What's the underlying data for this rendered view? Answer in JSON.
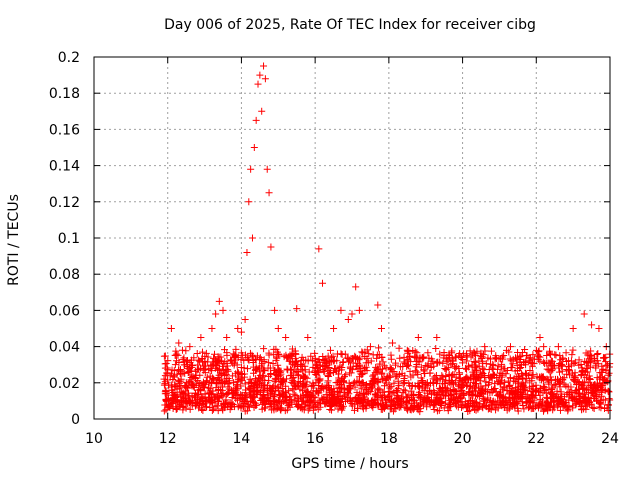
{
  "chart_data": {
    "type": "scatter",
    "title": "Day 006 of 2025, Rate Of TEC Index for receiver cibg",
    "xlabel": "GPS time / hours",
    "ylabel": "ROTI / TECUs",
    "xlim": [
      10,
      24
    ],
    "ylim": [
      0,
      0.2
    ],
    "xticks": [
      "10",
      "12",
      "14",
      "16",
      "18",
      "20",
      "22",
      "24"
    ],
    "yticks": [
      "0",
      "0.02",
      "0.04",
      "0.06",
      "0.08",
      "0.1",
      "0.12",
      "0.14",
      "0.16",
      "0.18",
      "0.2"
    ],
    "grid": true,
    "marker": "+",
    "color": "#ff0000",
    "series": [
      {
        "name": "ROTI",
        "x": [
          11.9,
          12.1,
          12.3,
          12.4,
          12.6,
          12.9,
          13.2,
          13.3,
          13.4,
          13.5,
          13.6,
          13.9,
          14.0,
          14.1,
          14.15,
          14.2,
          14.25,
          14.3,
          14.35,
          14.4,
          14.45,
          14.5,
          14.55,
          14.6,
          14.65,
          14.7,
          14.75,
          14.8,
          14.9,
          15.0,
          15.2,
          15.5,
          15.8,
          16.0,
          16.1,
          16.2,
          16.5,
          16.7,
          16.9,
          17.0,
          17.1,
          17.2,
          17.5,
          17.7,
          17.8,
          18.1,
          18.5,
          18.8,
          19.3,
          19.5,
          20.1,
          20.6,
          20.9,
          21.3,
          21.6,
          22.1,
          22.2,
          22.6,
          23.0,
          23.3,
          23.5,
          23.7,
          23.9
        ],
        "y": [
          0.022,
          0.05,
          0.042,
          0.038,
          0.04,
          0.045,
          0.05,
          0.058,
          0.065,
          0.06,
          0.045,
          0.05,
          0.048,
          0.055,
          0.092,
          0.12,
          0.138,
          0.1,
          0.15,
          0.165,
          0.185,
          0.19,
          0.17,
          0.195,
          0.188,
          0.138,
          0.125,
          0.095,
          0.06,
          0.05,
          0.045,
          0.061,
          0.045,
          0.032,
          0.094,
          0.075,
          0.05,
          0.06,
          0.055,
          0.058,
          0.073,
          0.06,
          0.04,
          0.063,
          0.05,
          0.042,
          0.038,
          0.045,
          0.045,
          0.035,
          0.035,
          0.04,
          0.035,
          0.04,
          0.03,
          0.045,
          0.04,
          0.04,
          0.05,
          0.058,
          0.052,
          0.05,
          0.04
        ]
      }
    ]
  }
}
